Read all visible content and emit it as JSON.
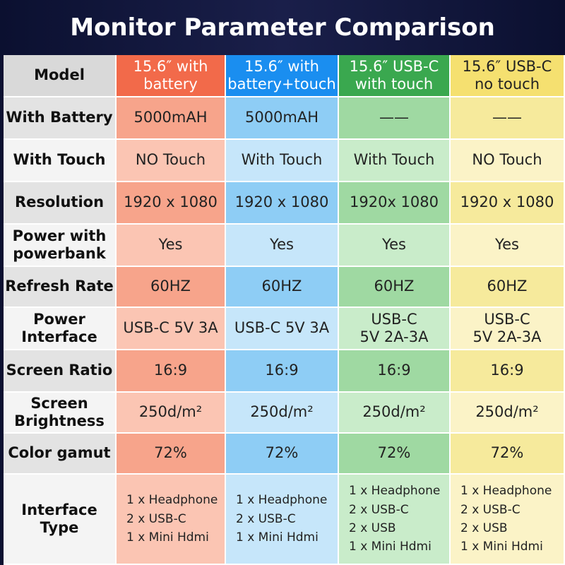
{
  "header": {
    "title": "Monitor Parameter Comparison"
  },
  "table": {
    "columns": [
      "Model",
      [
        "15.6″  with",
        "battery"
      ],
      [
        "15.6″  with",
        "battery+touch"
      ],
      [
        "15.6″  USB-C",
        "with touch"
      ],
      [
        "15.6″  USB-C",
        "no touch"
      ]
    ],
    "rows": [
      [
        "With Battery",
        "5000mAH",
        "5000mAH",
        "——",
        "——"
      ],
      [
        "With Touch",
        "NO Touch",
        "With Touch",
        "With Touch",
        "NO Touch"
      ],
      [
        "Resolution",
        "1920 x 1080",
        "1920 x 1080",
        "1920x 1080",
        "1920 x 1080"
      ],
      [
        [
          "Power with",
          "powerbank"
        ],
        "Yes",
        "Yes",
        "Yes",
        "Yes"
      ],
      [
        "Refresh Rate",
        "60HZ",
        "60HZ",
        "60HZ",
        "60HZ"
      ],
      [
        [
          "Power",
          "Interface"
        ],
        "USB-C  5V 3A",
        "USB-C  5V 3A",
        [
          "USB-C",
          "5V 2A-3A"
        ],
        [
          "USB-C",
          "5V 2A-3A"
        ]
      ],
      [
        "Screen Ratio",
        "16:9",
        "16:9",
        "16:9",
        "16:9"
      ],
      [
        [
          "Screen",
          "Brightness"
        ],
        "250d/m²",
        "250d/m²",
        "250d/m²",
        "250d/m²"
      ],
      [
        "Color gamut",
        "72%",
        "72%",
        "72%",
        "72%"
      ],
      [
        [
          "Interface",
          "Type"
        ],
        [
          "1 x Headphone",
          "2 x USB-C",
          "1 x Mini Hdmi"
        ],
        [
          "1 x Headphone",
          "2 x USB-C",
          "1 x Mini Hdmi"
        ],
        [
          "1 x Headphone",
          "2 x USB-C",
          "2 x USB",
          "1 x Mini Hdmi"
        ],
        [
          "1 x Headphone",
          "2 x USB-C",
          "2 x USB",
          "1 x Mini Hdmi"
        ]
      ]
    ]
  }
}
